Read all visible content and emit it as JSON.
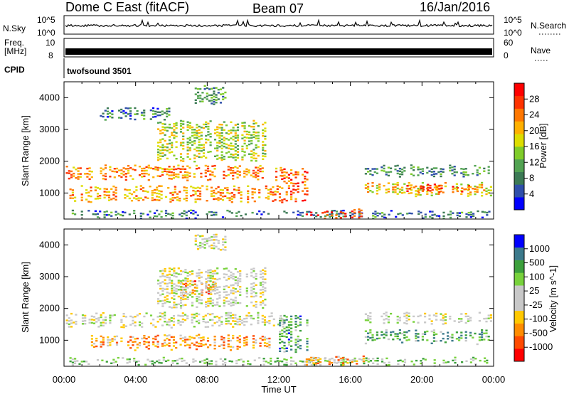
{
  "header": {
    "title": "Dome C East (fitACF)",
    "beam": "Beam 07",
    "date": "16/Jan/2016"
  },
  "strips": {
    "nsky_label": "N.Sky",
    "nsky_ticks": [
      "10^5",
      "10^0"
    ],
    "nsearch_label": "N.Search",
    "freq_label_line1": "Freq.",
    "freq_label_line2": "[MHz]",
    "freq_ticks": [
      "10",
      "8"
    ],
    "nave_label": "Nave",
    "nave_ticks": [
      "60",
      "0"
    ],
    "cpid_label": "CPID",
    "cpid_value": "twofsound 3501"
  },
  "chart_data": [
    {
      "type": "heatmap",
      "name": "Power",
      "ylabel": "Slant Range [km]",
      "xlabel": "Time UT",
      "xlim": [
        "00:00",
        "24:00"
      ],
      "ylim": [
        180,
        4500
      ],
      "xticks": [
        "00:00",
        "04:00",
        "08:00",
        "12:00",
        "16:00",
        "20:00",
        "00:00"
      ],
      "yticks": [
        1000,
        2000,
        3000,
        4000
      ],
      "colorbar": {
        "label": "Power [dB]",
        "ticks": [
          "28",
          "24",
          "20",
          "16",
          "12",
          "8",
          "4"
        ],
        "colors": [
          "#0000ff",
          "#2f4faa",
          "#3c7a55",
          "#52a352",
          "#7fcc2a",
          "#dddd00",
          "#ffb000",
          "#ff7700",
          "#ff3300",
          "#ff0000"
        ]
      },
      "echo_regions": [
        {
          "t0": 0.1,
          "t1": 12.3,
          "r0": 1400,
          "r1": 1900,
          "level": 0.72
        },
        {
          "t0": 0.3,
          "t1": 12.0,
          "r0": 700,
          "r1": 1250,
          "level": 0.68
        },
        {
          "t0": 0.3,
          "t1": 23.8,
          "r0": 200,
          "r1": 480,
          "level": 0.25
        },
        {
          "t0": 12.0,
          "t1": 13.6,
          "r0": 600,
          "r1": 1800,
          "level": 0.8
        },
        {
          "t0": 13.5,
          "t1": 16.8,
          "r0": 200,
          "r1": 520,
          "level": 0.88
        },
        {
          "t0": 16.8,
          "t1": 23.8,
          "r0": 1500,
          "r1": 1900,
          "level": 0.3
        },
        {
          "t0": 16.8,
          "t1": 23.8,
          "r0": 900,
          "r1": 1350,
          "level": 0.6
        },
        {
          "t0": 19.0,
          "t1": 22.6,
          "r0": 1000,
          "r1": 1300,
          "level": 0.85
        },
        {
          "t0": 5.2,
          "t1": 11.2,
          "r0": 2000,
          "r1": 3300,
          "level": 0.5
        },
        {
          "t0": 7.3,
          "t1": 9.0,
          "r0": 3800,
          "r1": 4400,
          "level": 0.3
        },
        {
          "t0": 2.0,
          "t1": 6.0,
          "r0": 3300,
          "r1": 3700,
          "level": 0.25
        }
      ]
    },
    {
      "type": "heatmap",
      "name": "Velocity",
      "ylabel": "Slant Range [km]",
      "xlabel": "Time UT",
      "xlim": [
        "00:00",
        "24:00"
      ],
      "ylim": [
        180,
        4500
      ],
      "xticks": [
        "00:00",
        "04:00",
        "08:00",
        "12:00",
        "16:00",
        "20:00",
        "00:00"
      ],
      "yticks": [
        1000,
        2000,
        3000,
        4000
      ],
      "colorbar": {
        "label": "Velocity [m s^-1]",
        "ticks": [
          "1000",
          "500",
          "100",
          "25",
          "-25",
          "-100",
          "-500",
          "-1000"
        ],
        "colors": [
          "#ff0000",
          "#ff4a00",
          "#ff8c00",
          "#ffc800",
          "#c8c8c8",
          "#c8c8c8",
          "#78d23c",
          "#3ca03c",
          "#3c7a8c",
          "#0000ff"
        ]
      },
      "echo_regions": [
        {
          "t0": 0.1,
          "t1": 12.3,
          "r0": 1400,
          "r1": 1900,
          "level": 0.5
        },
        {
          "t0": 1.5,
          "t1": 11.5,
          "r0": 700,
          "r1": 1200,
          "level": 0.28
        },
        {
          "t0": 0.3,
          "t1": 23.8,
          "r0": 200,
          "r1": 480,
          "level": 0.62
        },
        {
          "t0": 12.0,
          "t1": 13.6,
          "r0": 600,
          "r1": 1800,
          "level": 0.75
        },
        {
          "t0": 13.5,
          "t1": 16.8,
          "r0": 200,
          "r1": 520,
          "level": 0.3
        },
        {
          "t0": 16.8,
          "t1": 23.8,
          "r0": 1500,
          "r1": 1900,
          "level": 0.5
        },
        {
          "t0": 16.8,
          "t1": 23.8,
          "r0": 900,
          "r1": 1350,
          "level": 0.72
        },
        {
          "t0": 6.5,
          "t1": 8.5,
          "r0": 2400,
          "r1": 2900,
          "level": 0.2
        },
        {
          "t0": 5.2,
          "t1": 11.2,
          "r0": 2000,
          "r1": 3300,
          "level": 0.5
        },
        {
          "t0": 7.3,
          "t1": 9.0,
          "r0": 3800,
          "r1": 4400,
          "level": 0.5
        }
      ]
    }
  ]
}
